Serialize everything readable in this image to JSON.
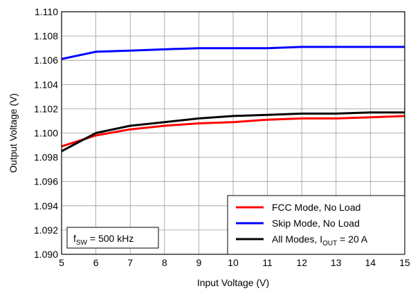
{
  "chart_data": {
    "type": "line",
    "title": "",
    "xlabel": "Input Voltage (V)",
    "ylabel": "Output Voltage (V)",
    "xlim": [
      5,
      15
    ],
    "ylim": [
      1.09,
      1.11
    ],
    "x_ticks": [
      5,
      6,
      7,
      8,
      9,
      10,
      11,
      12,
      13,
      14,
      15
    ],
    "y_ticks": [
      1.09,
      1.092,
      1.094,
      1.096,
      1.098,
      1.1,
      1.102,
      1.104,
      1.106,
      1.108,
      1.11
    ],
    "x_tick_labels": [
      "5",
      "6",
      "7",
      "8",
      "9",
      "10",
      "11",
      "12",
      "13",
      "14",
      "15"
    ],
    "y_tick_labels": [
      "1.090",
      "1.092",
      "1.094",
      "1.096",
      "1.098",
      "1.100",
      "1.102",
      "1.104",
      "1.106",
      "1.108",
      "1.110"
    ],
    "grid": true,
    "legend_position": "bottom-right",
    "x": [
      5,
      6,
      7,
      8,
      9,
      10,
      11,
      12,
      13,
      14,
      15
    ],
    "series": [
      {
        "name": "FCC Mode, No Load",
        "color": "#ff0000",
        "values": [
          1.0989,
          1.0998,
          1.1003,
          1.1006,
          1.1008,
          1.1009,
          1.1011,
          1.1012,
          1.1012,
          1.1013,
          1.1014
        ]
      },
      {
        "name": "Skip Mode, No Load",
        "color": "#0000ff",
        "values": [
          1.1061,
          1.1067,
          1.1068,
          1.1069,
          1.107,
          1.107,
          1.107,
          1.1071,
          1.1071,
          1.1071,
          1.1071
        ]
      },
      {
        "name": "All Modes, I",
        "name_sub": "OUT",
        "name_suffix": " = 20 A",
        "color": "#000000",
        "values": [
          1.0985,
          1.1,
          1.1006,
          1.1009,
          1.1012,
          1.1014,
          1.1015,
          1.1016,
          1.1016,
          1.1017,
          1.1017
        ]
      }
    ],
    "annotation": {
      "prefix": "f",
      "sub": "SW",
      "suffix": " = 500 kHz"
    }
  }
}
